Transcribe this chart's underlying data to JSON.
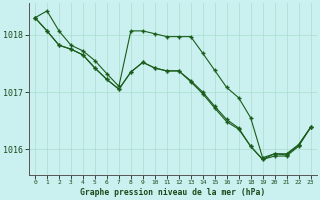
{
  "title": "Graphe pression niveau de la mer (hPa)",
  "bg_color": "#caf0f0",
  "grid_color": "#aaddcc",
  "line_color": "#1a5c1a",
  "xlim": [
    -0.5,
    23.5
  ],
  "ylim": [
    1015.55,
    1018.55
  ],
  "yticks": [
    1016,
    1017,
    1018
  ],
  "xticks": [
    0,
    1,
    2,
    3,
    4,
    5,
    6,
    7,
    8,
    9,
    10,
    11,
    12,
    13,
    14,
    15,
    16,
    17,
    18,
    19,
    20,
    21,
    22,
    23
  ],
  "line1": [
    1018.3,
    1018.42,
    1018.07,
    1017.82,
    1017.72,
    1017.55,
    1017.32,
    1017.1,
    1018.07,
    1018.07,
    1018.02,
    1017.97,
    1017.97,
    1017.97,
    1017.68,
    1017.38,
    1017.08,
    1016.9,
    1016.55,
    1015.85,
    1015.92,
    1015.9,
    1016.07,
    1016.38
  ],
  "line2": [
    1018.3,
    1018.07,
    1017.82,
    1017.75,
    1017.65,
    1017.42,
    1017.22,
    1017.05,
    1017.35,
    1017.52,
    1017.42,
    1017.37,
    1017.37,
    1017.18,
    1016.97,
    1016.72,
    1016.48,
    1016.35,
    1016.05,
    1015.82,
    1015.92,
    1015.92,
    1016.08,
    1016.38
  ],
  "line3": [
    1018.3,
    1018.07,
    1017.82,
    1017.75,
    1017.65,
    1017.42,
    1017.22,
    1017.05,
    1017.35,
    1017.52,
    1017.42,
    1017.37,
    1017.37,
    1017.2,
    1017.0,
    1016.75,
    1016.52,
    1016.37,
    1016.05,
    1015.82,
    1015.88,
    1015.88,
    1016.05,
    1016.38
  ],
  "figsize": [
    3.2,
    2.0
  ],
  "dpi": 100
}
